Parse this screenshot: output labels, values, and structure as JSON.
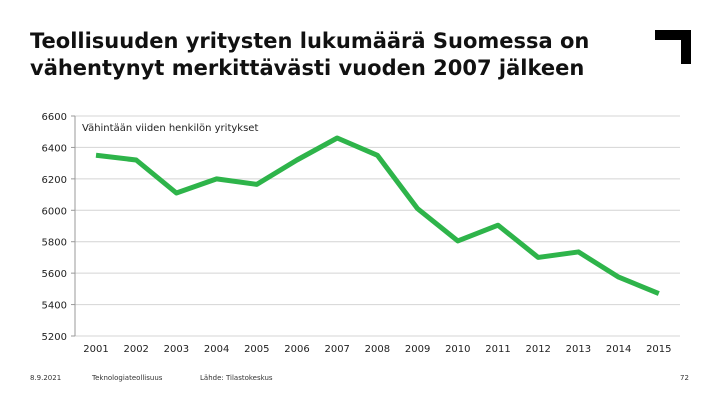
{
  "slide": {
    "title": "Teollisuuden yritysten lukumäärä Suomessa on vähentynyt merkittävästi vuoden 2007 jälkeen",
    "date": "8.9.2021",
    "organization": "Teknologiateollisuus",
    "source": "Lähde: Tilastokeskus",
    "page_number": "72",
    "logo_icon": "corner-bracket-logo",
    "accent_color": "#2eb44a"
  },
  "chart_data": {
    "type": "line",
    "title": "",
    "xlabel": "",
    "ylabel": "",
    "ylim": [
      5200,
      6600
    ],
    "yticks": [
      5200,
      5400,
      5600,
      5800,
      6000,
      6200,
      6400,
      6600
    ],
    "categories": [
      "2001",
      "2002",
      "2003",
      "2004",
      "2005",
      "2006",
      "2007",
      "2008",
      "2009",
      "2010",
      "2011",
      "2012",
      "2013",
      "2014",
      "2015"
    ],
    "series": [
      {
        "name": "Vähintään viiden henkilön yritykset",
        "color": "#2eb44a",
        "values": [
          6350,
          6320,
          6110,
          6200,
          6165,
          6320,
          6460,
          6350,
          6010,
          5805,
          5905,
          5700,
          5735,
          5575,
          5470
        ]
      }
    ],
    "grid": true
  }
}
